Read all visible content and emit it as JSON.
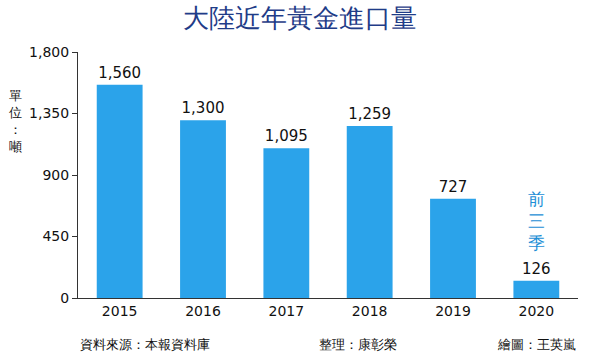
{
  "chart_data": {
    "type": "bar",
    "title": "大陸近年黃金進口量",
    "y_label": "單位：噸",
    "categories": [
      "2015",
      "2016",
      "2017",
      "2018",
      "2019",
      "2020"
    ],
    "values": [
      1560,
      1300,
      1095,
      1259,
      727,
      126
    ],
    "value_labels": [
      "1,560",
      "1,300",
      "1,095",
      "1,259",
      "727",
      "126"
    ],
    "data_labels": true,
    "color": "#2ba3ea",
    "ylim": [
      0,
      1800
    ],
    "yticks": [
      0,
      450,
      900,
      {
        "value": 1350,
        "label": "1,350"
      },
      {
        "value": 1800,
        "label": "1,800"
      }
    ],
    "grid": false,
    "annotations": [
      {
        "category": "2020",
        "text": "前三季"
      }
    ],
    "footer": [
      "資料來源：本報資料庫",
      "整理：康彰榮",
      "繪圖：王英嵐"
    ]
  }
}
